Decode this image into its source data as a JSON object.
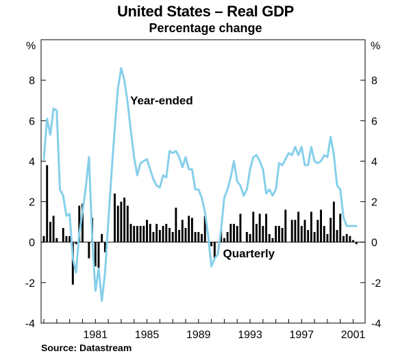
{
  "title": "United States – Real GDP",
  "subtitle": "Percentage change",
  "source": "Source: Datastream",
  "chart_data": {
    "type": "line",
    "y_unit_left": "%",
    "y_unit_right": "%",
    "ylim": [
      -4,
      10
    ],
    "yticks": [
      -4,
      -2,
      0,
      2,
      4,
      6,
      8
    ],
    "x_tick_labels": [
      "1981",
      "1985",
      "1989",
      "1993",
      "1997",
      "2001"
    ],
    "x_tick_positions": [
      1981,
      1985,
      1989,
      1993,
      1997,
      2001
    ],
    "xlim": [
      1977.0,
      2001.5
    ],
    "grid": false,
    "annotations": [
      {
        "text": "Year-ended",
        "x": 1983.7,
        "y": 7.0
      },
      {
        "text": "Quarterly",
        "x": 1990.9,
        "y": -0.55
      }
    ],
    "colors": {
      "year_ended": "#86cfea",
      "quarterly": "#000000",
      "axis": "#000000"
    },
    "series": [
      {
        "name": "Year-ended",
        "style": "line",
        "x": [
          1977.0,
          1977.25,
          1977.5,
          1977.75,
          1978.0,
          1978.25,
          1978.5,
          1978.75,
          1979.0,
          1979.25,
          1979.5,
          1979.75,
          1980.0,
          1980.25,
          1980.5,
          1980.75,
          1981.0,
          1981.25,
          1981.5,
          1981.75,
          1982.0,
          1982.25,
          1982.5,
          1982.75,
          1983.0,
          1983.25,
          1983.5,
          1983.75,
          1984.0,
          1984.25,
          1984.5,
          1984.75,
          1985.0,
          1985.25,
          1985.5,
          1985.75,
          1986.0,
          1986.25,
          1986.5,
          1986.75,
          1987.0,
          1987.25,
          1987.5,
          1987.75,
          1988.0,
          1988.25,
          1988.5,
          1988.75,
          1989.0,
          1989.25,
          1989.5,
          1989.75,
          1990.0,
          1990.25,
          1990.5,
          1990.75,
          1991.0,
          1991.25,
          1991.5,
          1991.75,
          1992.0,
          1992.25,
          1992.5,
          1992.75,
          1993.0,
          1993.25,
          1993.5,
          1993.75,
          1994.0,
          1994.25,
          1994.5,
          1994.75,
          1995.0,
          1995.25,
          1995.5,
          1995.75,
          1996.0,
          1996.25,
          1996.5,
          1996.75,
          1997.0,
          1997.25,
          1997.5,
          1997.75,
          1998.0,
          1998.25,
          1998.5,
          1998.75,
          1999.0,
          1999.25,
          1999.5,
          1999.75,
          2000.0,
          2000.25,
          2000.5,
          2000.75,
          2001.0,
          2001.25
        ],
        "values": [
          4.1,
          6.1,
          5.3,
          6.6,
          6.5,
          2.6,
          2.3,
          1.3,
          1.4,
          -0.8,
          -1.5,
          0.4,
          1.5,
          2.7,
          4.2,
          0.2,
          -2.4,
          -1.3,
          -2.9,
          -1.5,
          1.0,
          3.4,
          5.6,
          7.6,
          8.6,
          8.0,
          6.9,
          5.5,
          4.2,
          3.3,
          3.9,
          4.0,
          4.1,
          3.6,
          3.1,
          2.8,
          2.7,
          3.3,
          3.2,
          4.5,
          4.4,
          4.5,
          4.2,
          3.7,
          4.2,
          3.6,
          3.6,
          2.6,
          2.6,
          2.2,
          1.5,
          0.3,
          -1.2,
          -0.8,
          -0.6,
          0.6,
          2.2,
          2.6,
          3.2,
          4.0,
          3.0,
          2.8,
          2.3,
          2.6,
          3.6,
          4.2,
          4.3,
          4.0,
          3.6,
          2.4,
          2.6,
          2.3,
          2.6,
          3.9,
          3.8,
          4.1,
          4.4,
          4.3,
          4.7,
          4.3,
          4.7,
          3.8,
          3.8,
          4.7,
          4.0,
          3.9,
          4.0,
          4.3,
          4.2,
          5.2,
          4.3,
          2.8,
          2.6,
          1.2,
          0.8,
          0.8,
          0.8,
          0.8
        ]
      },
      {
        "name": "Quarterly",
        "style": "bar",
        "x": [
          1977.0,
          1977.25,
          1977.5,
          1977.75,
          1978.0,
          1978.25,
          1978.5,
          1978.75,
          1979.0,
          1979.25,
          1979.5,
          1979.75,
          1980.0,
          1980.25,
          1980.5,
          1980.75,
          1981.0,
          1981.25,
          1981.5,
          1981.75,
          1982.0,
          1982.25,
          1982.5,
          1982.75,
          1983.0,
          1983.25,
          1983.5,
          1983.75,
          1984.0,
          1984.25,
          1984.5,
          1984.75,
          1985.0,
          1985.25,
          1985.5,
          1985.75,
          1986.0,
          1986.25,
          1986.5,
          1986.75,
          1987.0,
          1987.25,
          1987.5,
          1987.75,
          1988.0,
          1988.25,
          1988.5,
          1988.75,
          1989.0,
          1989.25,
          1989.5,
          1989.75,
          1990.0,
          1990.25,
          1990.5,
          1990.75,
          1991.0,
          1991.25,
          1991.5,
          1991.75,
          1992.0,
          1992.25,
          1992.5,
          1992.75,
          1993.0,
          1993.25,
          1993.5,
          1993.75,
          1994.0,
          1994.25,
          1994.5,
          1994.75,
          1995.0,
          1995.25,
          1995.5,
          1995.75,
          1996.0,
          1996.25,
          1996.5,
          1996.75,
          1997.0,
          1997.25,
          1997.5,
          1997.75,
          1998.0,
          1998.25,
          1998.5,
          1998.75,
          1999.0,
          1999.25,
          1999.5,
          1999.75,
          2000.0,
          2000.25,
          2000.5,
          2000.75,
          2001.0,
          2001.25
        ],
        "values": [
          0.3,
          3.8,
          1.0,
          1.3,
          0.2,
          0.0,
          0.7,
          0.3,
          0.3,
          -2.1,
          -0.1,
          1.8,
          1.9,
          0.0,
          -0.8,
          1.2,
          -1.2,
          -1.3,
          0.4,
          -0.5,
          0.0,
          0.0,
          2.4,
          1.8,
          2.0,
          2.2,
          1.8,
          0.9,
          0.8,
          0.8,
          0.8,
          0.8,
          1.1,
          0.9,
          0.5,
          0.9,
          0.6,
          0.8,
          0.9,
          0.7,
          0.5,
          1.7,
          0.6,
          1.1,
          0.7,
          1.3,
          1.2,
          0.5,
          0.5,
          0.4,
          1.3,
          0.0,
          -0.2,
          -0.8,
          0.0,
          0.6,
          0.2,
          0.5,
          0.9,
          0.9,
          0.8,
          1.4,
          0.0,
          0.5,
          0.4,
          1.5,
          0.9,
          1.4,
          0.8,
          1.4,
          0.4,
          0.2,
          0.8,
          0.8,
          0.7,
          1.6,
          0.0,
          1.1,
          1.1,
          1.5,
          0.8,
          1.1,
          0.6,
          1.5,
          0.5,
          1.1,
          1.6,
          0.8,
          0.4,
          1.2,
          2.0,
          0.6,
          1.4,
          0.3,
          0.4,
          0.3,
          0.1,
          -0.1
        ]
      }
    ]
  }
}
